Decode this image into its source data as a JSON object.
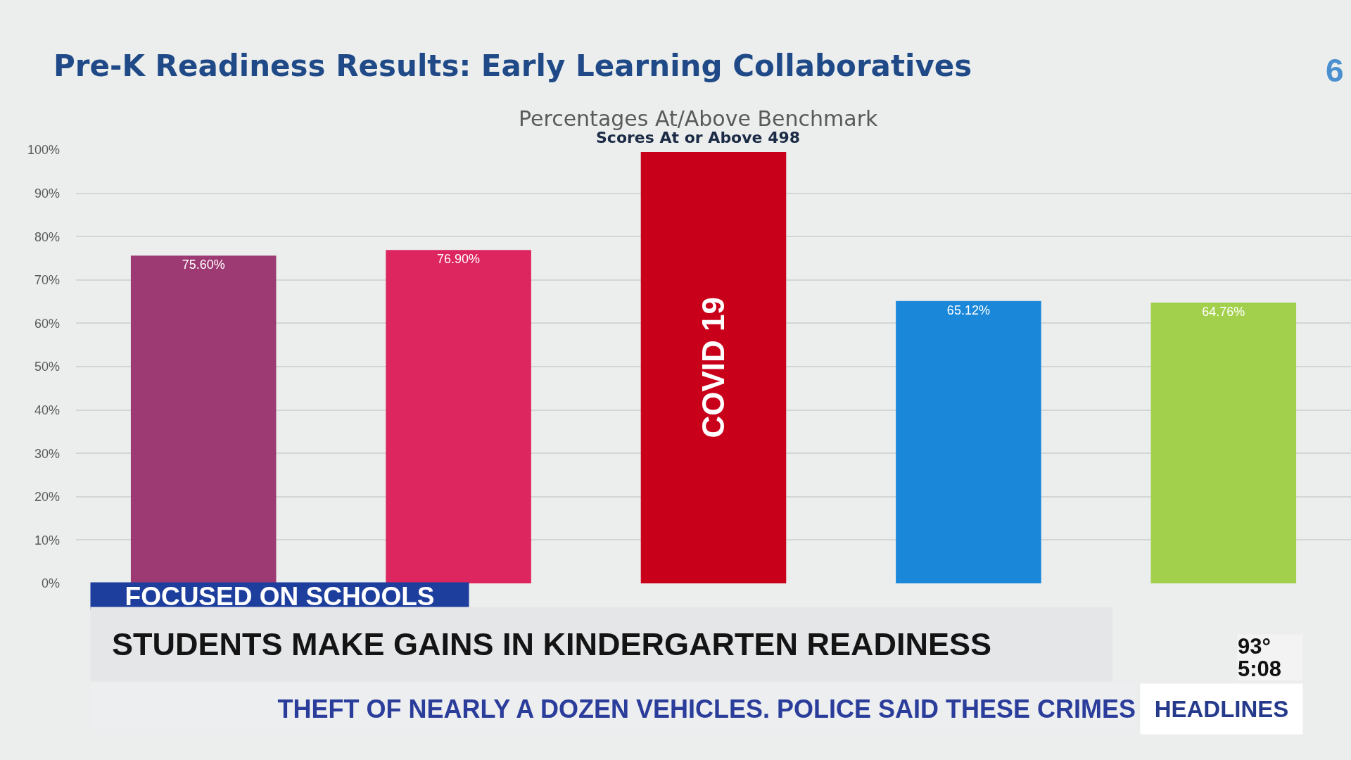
{
  "chart_data": {
    "type": "bar",
    "title": "Pre-K Readiness Results: Early Learning Collaboratives",
    "subtitle": "Percentages At/Above Benchmark",
    "categories": [
      null,
      null,
      "COVID 19",
      null,
      null
    ],
    "values": [
      75.6,
      76.9,
      99.5,
      65.12,
      64.76
    ],
    "colors": [
      "#9e3a73",
      "#dd2660",
      "#c9001a",
      "#1a87d9",
      "#a3d04c"
    ],
    "value_labels": [
      "75.60%",
      "76.90%",
      null,
      "65.12%",
      "64.76%"
    ],
    "ylim": [
      0,
      100
    ],
    "yticks": [
      {
        "value": 0,
        "label": "0%"
      },
      {
        "value": 10,
        "label": "10%"
      },
      {
        "value": 20,
        "label": "20%"
      },
      {
        "value": 30,
        "label": "30%"
      },
      {
        "value": 40,
        "label": "40%"
      },
      {
        "value": 50,
        "label": "50%"
      },
      {
        "value": 60,
        "label": "60%"
      },
      {
        "value": 70,
        "label": "70%"
      },
      {
        "value": 80,
        "label": "80%"
      },
      {
        "value": 90,
        "label": "90%"
      },
      {
        "value": 100,
        "label": "100%"
      }
    ],
    "grid": "y",
    "tick_labels": "y",
    "annotations": [
      "Scores At or Above 498",
      "6",
      "FOCUSED ON SCHOOLS",
      "STUDENTS MAKE GAINS IN KINDERGARTEN READINESS",
      "93°",
      "5:08",
      "THEFT OF NEARLY A DOZEN VEHICLES. POLICE SAID THESE CRIMES",
      "HEADLINES"
    ]
  }
}
